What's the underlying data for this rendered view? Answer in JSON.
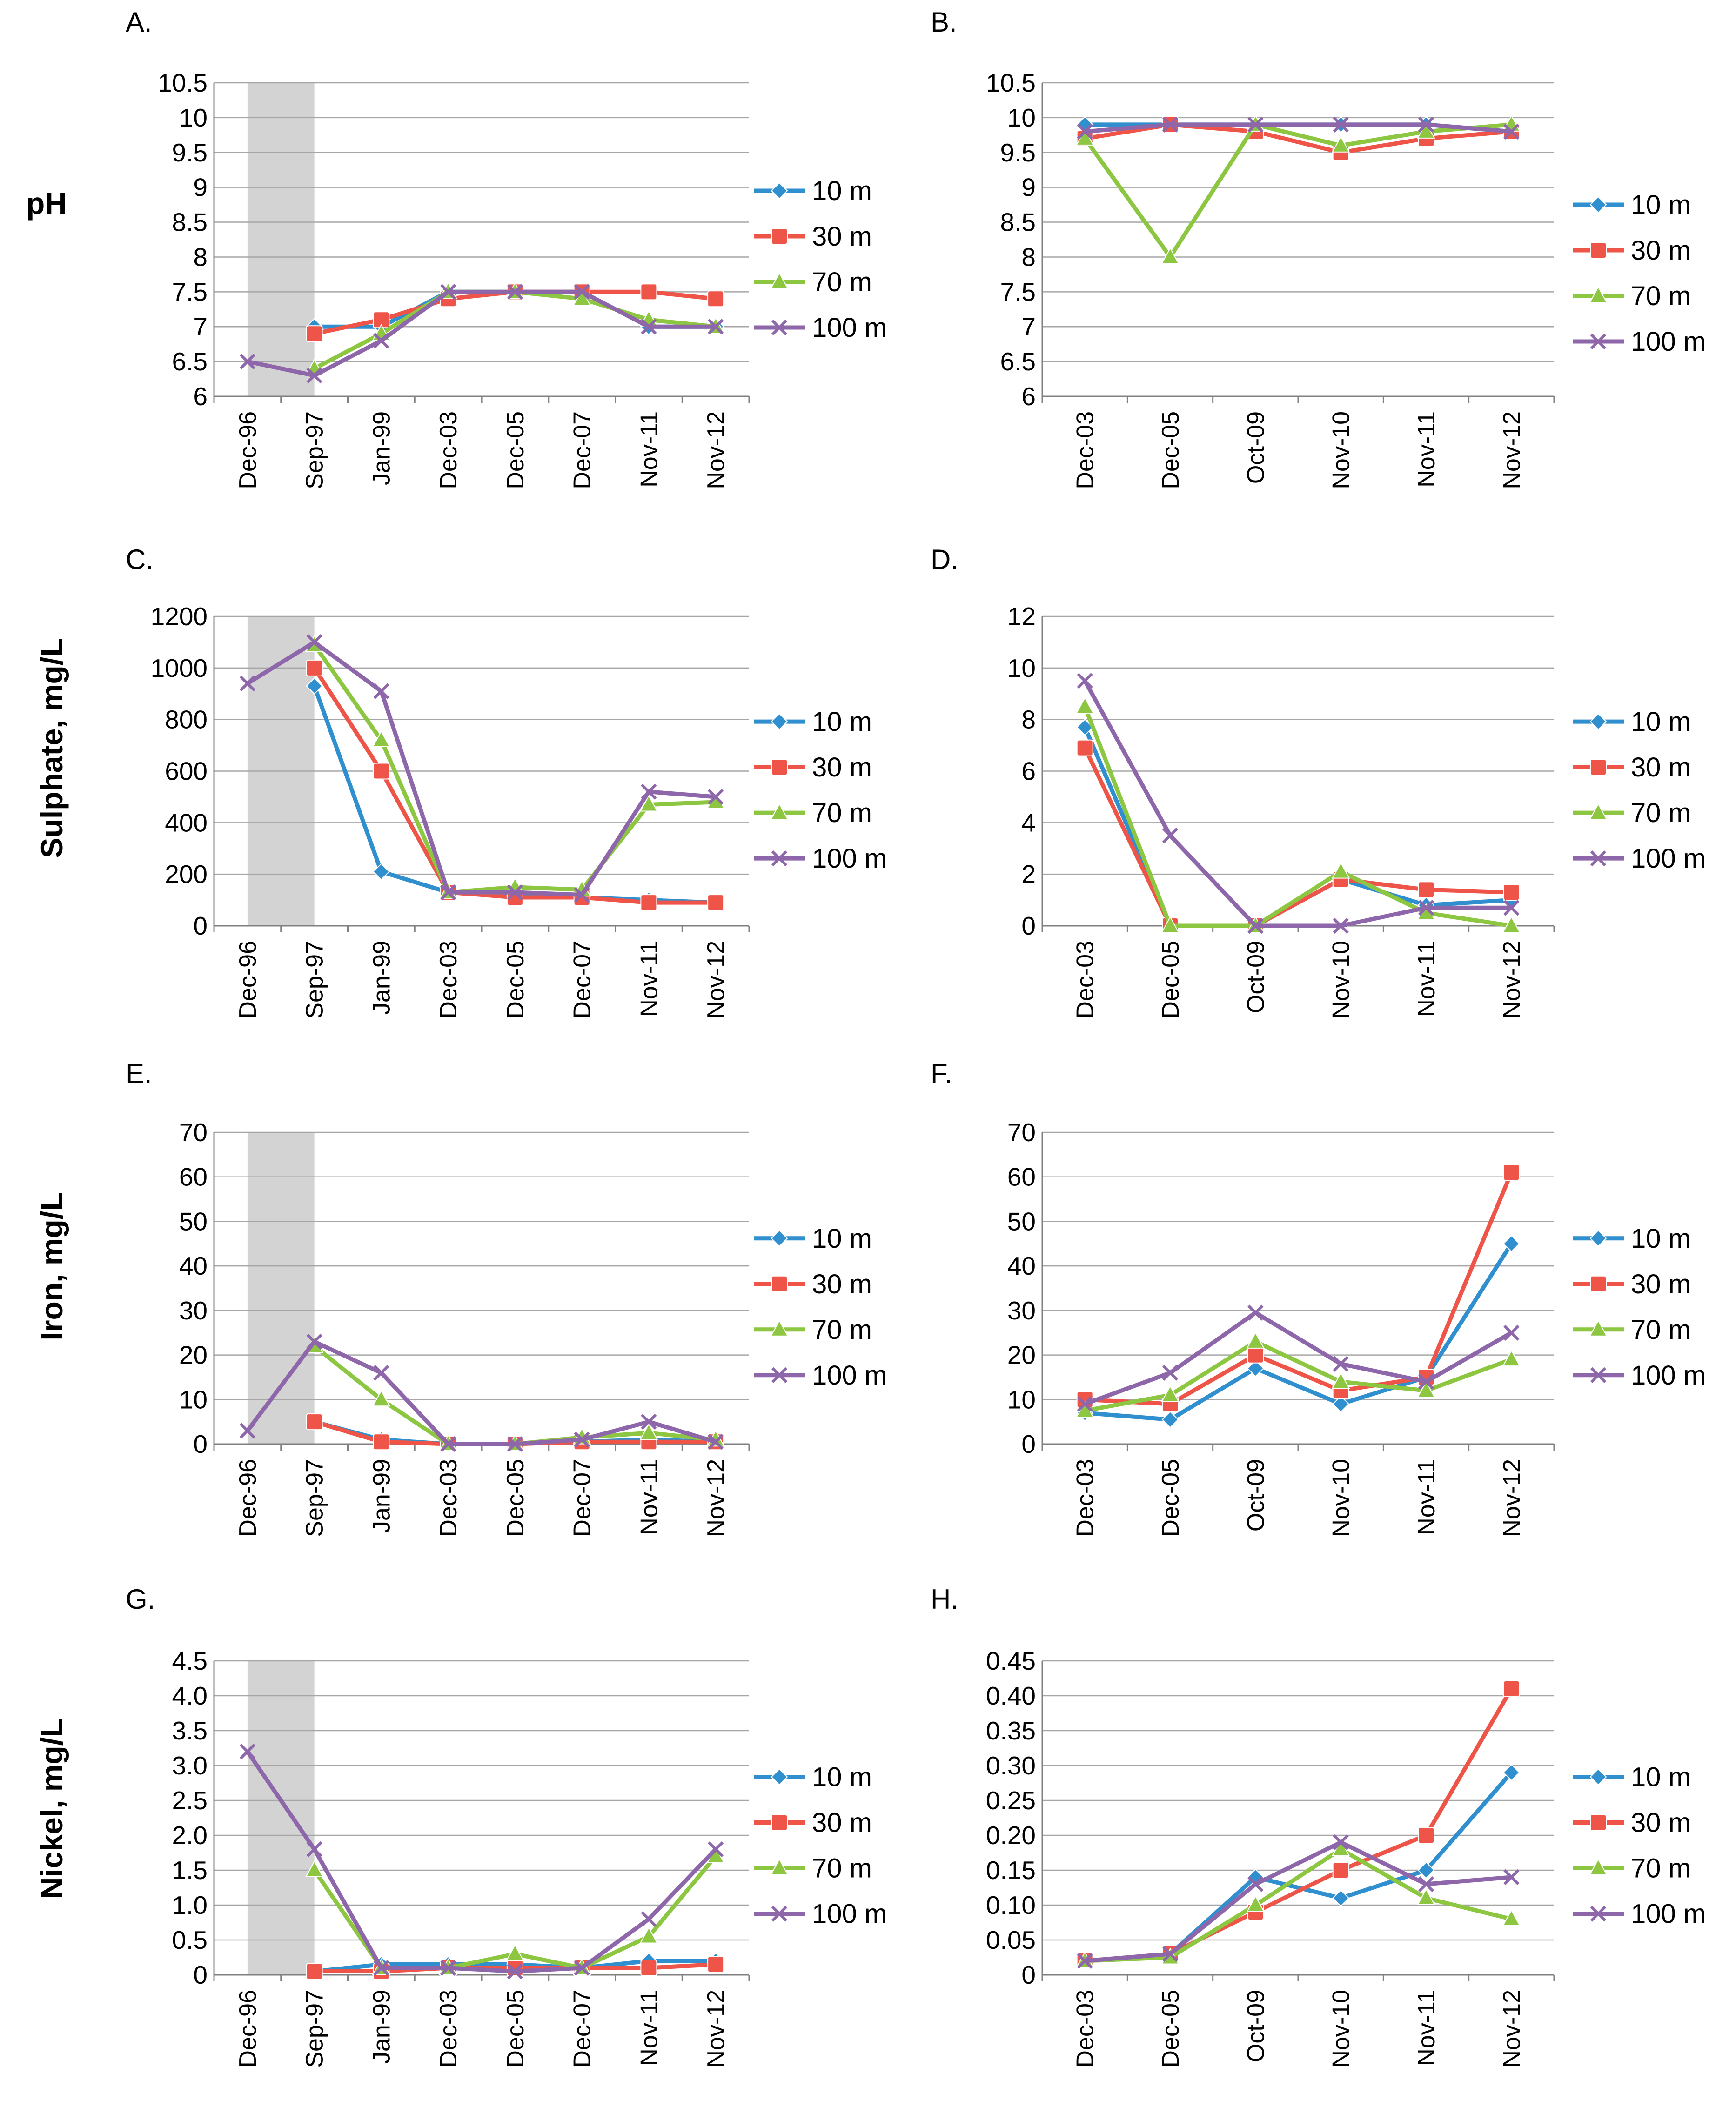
{
  "figure": {
    "row_labels": [
      "pH",
      "Sulphate, mg/L",
      "Iron, mg/L",
      "Nickel, mg/L"
    ]
  },
  "legend": {
    "series_names": [
      "10 m",
      "30 m",
      "70 m",
      "100 m"
    ]
  },
  "colors": {
    "10 m": "#2f8fcf",
    "30 m": "#ef5448",
    "70 m": "#8dc641",
    "100 m": "#8e67aa",
    "shade": "#d3d3d3",
    "grid": "#a6a6a6"
  },
  "chart_data": [
    {
      "panel": "A.",
      "type": "line",
      "categories": [
        "Dec-96",
        "Sep-97",
        "Jan-99",
        "Dec-03",
        "Dec-05",
        "Dec-07",
        "Nov-11",
        "Nov-12"
      ],
      "ylim": [
        6,
        10.5
      ],
      "yticks": [
        "6",
        "6.5",
        "7",
        "7.5",
        "8",
        "8.5",
        "9",
        "9.5",
        "10",
        "10.5"
      ],
      "shaded_categories": [
        "Dec-96",
        "Sep-97"
      ],
      "series": [
        {
          "name": "10 m",
          "values": [
            null,
            7.0,
            7.0,
            7.5,
            7.5,
            7.5,
            7.0,
            7.0
          ]
        },
        {
          "name": "30 m",
          "values": [
            null,
            6.9,
            7.1,
            7.4,
            7.5,
            7.5,
            7.5,
            7.4
          ]
        },
        {
          "name": "70 m",
          "values": [
            null,
            6.4,
            6.9,
            7.5,
            7.5,
            7.4,
            7.1,
            7.0
          ]
        },
        {
          "name": "100 m",
          "values": [
            6.5,
            6.3,
            6.8,
            7.5,
            7.5,
            7.5,
            7.0,
            7.0
          ]
        }
      ]
    },
    {
      "panel": "B.",
      "type": "line",
      "categories": [
        "Dec-03",
        "Dec-05",
        "Oct-09",
        "Nov-10",
        "Nov-11",
        "Nov-12"
      ],
      "ylim": [
        6,
        10.5
      ],
      "yticks": [
        "6",
        "6.5",
        "7",
        "7.5",
        "8",
        "8.5",
        "9",
        "9.5",
        "10",
        "10.5"
      ],
      "series": [
        {
          "name": "10 m",
          "values": [
            9.9,
            9.9,
            9.9,
            9.9,
            9.9,
            9.8
          ]
        },
        {
          "name": "30 m",
          "values": [
            9.7,
            9.9,
            9.8,
            9.5,
            9.7,
            9.8
          ]
        },
        {
          "name": "70 m",
          "values": [
            9.7,
            8.0,
            9.9,
            9.6,
            9.8,
            9.9
          ]
        },
        {
          "name": "100 m",
          "values": [
            9.8,
            9.9,
            9.9,
            9.9,
            9.9,
            9.8
          ]
        }
      ]
    },
    {
      "panel": "C.",
      "type": "line",
      "categories": [
        "Dec-96",
        "Sep-97",
        "Jan-99",
        "Dec-03",
        "Dec-05",
        "Dec-07",
        "Nov-11",
        "Nov-12"
      ],
      "ylim": [
        0,
        1200
      ],
      "yticks": [
        "0",
        "200",
        "400",
        "600",
        "800",
        "1000",
        "1200"
      ],
      "shaded_categories": [
        "Dec-96",
        "Sep-97"
      ],
      "series": [
        {
          "name": "10 m",
          "values": [
            null,
            930,
            210,
            130,
            120,
            110,
            100,
            90
          ]
        },
        {
          "name": "30 m",
          "values": [
            null,
            1000,
            600,
            130,
            110,
            110,
            90,
            90
          ]
        },
        {
          "name": "70 m",
          "values": [
            null,
            1090,
            720,
            130,
            150,
            140,
            470,
            480
          ]
        },
        {
          "name": "100 m",
          "values": [
            940,
            1100,
            910,
            130,
            130,
            120,
            520,
            500
          ]
        }
      ]
    },
    {
      "panel": "D.",
      "type": "line",
      "categories": [
        "Dec-03",
        "Dec-05",
        "Oct-09",
        "Nov-10",
        "Nov-11",
        "Nov-12"
      ],
      "ylim": [
        0,
        12
      ],
      "yticks": [
        "0",
        "2",
        "4",
        "6",
        "8",
        "10",
        "12"
      ],
      "series": [
        {
          "name": "10 m",
          "values": [
            7.7,
            0,
            0,
            1.8,
            0.8,
            1.0
          ]
        },
        {
          "name": "30 m",
          "values": [
            6.9,
            0,
            0,
            1.8,
            1.4,
            1.3
          ]
        },
        {
          "name": "70 m",
          "values": [
            8.5,
            0,
            0,
            2.1,
            0.5,
            0
          ]
        },
        {
          "name": "100 m",
          "values": [
            9.5,
            3.5,
            0,
            0,
            0.7,
            0.7
          ]
        }
      ]
    },
    {
      "panel": "E.",
      "type": "line",
      "categories": [
        "Dec-96",
        "Sep-97",
        "Jan-99",
        "Dec-03",
        "Dec-05",
        "Dec-07",
        "Nov-11",
        "Nov-12"
      ],
      "ylim": [
        0,
        70
      ],
      "yticks": [
        "0",
        "10",
        "20",
        "30",
        "40",
        "50",
        "60",
        "70"
      ],
      "shaded_categories": [
        "Dec-96",
        "Sep-97"
      ],
      "series": [
        {
          "name": "10 m",
          "values": [
            null,
            5,
            1,
            0,
            0,
            0.5,
            1,
            0.5
          ]
        },
        {
          "name": "30 m",
          "values": [
            null,
            5,
            0.5,
            0,
            0,
            0.5,
            0.5,
            0.5
          ]
        },
        {
          "name": "70 m",
          "values": [
            null,
            22,
            10,
            0,
            0,
            1.5,
            2.5,
            1
          ]
        },
        {
          "name": "100 m",
          "values": [
            3,
            23,
            16,
            0,
            0,
            1,
            5,
            0.5
          ]
        }
      ]
    },
    {
      "panel": "F.",
      "type": "line",
      "categories": [
        "Dec-03",
        "Dec-05",
        "Oct-09",
        "Nov-10",
        "Nov-11",
        "Nov-12"
      ],
      "ylim": [
        0,
        70
      ],
      "yticks": [
        "0",
        "10",
        "20",
        "30",
        "40",
        "50",
        "60",
        "70"
      ],
      "series": [
        {
          "name": "10 m",
          "values": [
            7,
            5.5,
            17,
            9,
            15,
            45
          ]
        },
        {
          "name": "30 m",
          "values": [
            10,
            9,
            20,
            12,
            15,
            61
          ]
        },
        {
          "name": "70 m",
          "values": [
            7.5,
            11,
            23,
            14,
            12,
            19
          ]
        },
        {
          "name": "100 m",
          "values": [
            9,
            16,
            29.5,
            18,
            14,
            25
          ]
        }
      ]
    },
    {
      "panel": "G.",
      "type": "line",
      "categories": [
        "Dec-96",
        "Sep-97",
        "Jan-99",
        "Dec-03",
        "Dec-05",
        "Dec-07",
        "Nov-11",
        "Nov-12"
      ],
      "ylim": [
        0,
        4.5
      ],
      "yticks": [
        "0",
        "0.5",
        "1.0",
        "1.5",
        "2.0",
        "2.5",
        "3.0",
        "3.5",
        "4.0",
        "4.5"
      ],
      "shaded_categories": [
        "Dec-96",
        "Sep-97"
      ],
      "series": [
        {
          "name": "10 m",
          "values": [
            null,
            0.05,
            0.15,
            0.15,
            0.15,
            0.1,
            0.2,
            0.2
          ]
        },
        {
          "name": "30 m",
          "values": [
            null,
            0.05,
            0.05,
            0.1,
            0.1,
            0.1,
            0.1,
            0.15
          ]
        },
        {
          "name": "70 m",
          "values": [
            null,
            1.5,
            0.1,
            0.1,
            0.3,
            0.1,
            0.55,
            1.7
          ]
        },
        {
          "name": "100 m",
          "values": [
            3.2,
            1.8,
            0.1,
            0.1,
            0.05,
            0.1,
            0.8,
            1.8
          ]
        }
      ]
    },
    {
      "panel": "H.",
      "type": "line",
      "categories": [
        "Dec-03",
        "Dec-05",
        "Oct-09",
        "Nov-10",
        "Nov-11",
        "Nov-12"
      ],
      "ylim": [
        0,
        0.45
      ],
      "yticks": [
        "0",
        "0.05",
        "0.10",
        "0.15",
        "0.20",
        "0.25",
        "0.30",
        "0.35",
        "0.40",
        "0.45"
      ],
      "series": [
        {
          "name": "10 m",
          "values": [
            0.02,
            0.03,
            0.14,
            0.11,
            0.15,
            0.29
          ]
        },
        {
          "name": "30 m",
          "values": [
            0.02,
            0.03,
            0.09,
            0.15,
            0.2,
            0.41
          ]
        },
        {
          "name": "70 m",
          "values": [
            0.02,
            0.025,
            0.1,
            0.18,
            0.11,
            0.08
          ]
        },
        {
          "name": "100 m",
          "values": [
            0.02,
            0.03,
            0.13,
            0.19,
            0.13,
            0.14
          ]
        }
      ]
    }
  ]
}
